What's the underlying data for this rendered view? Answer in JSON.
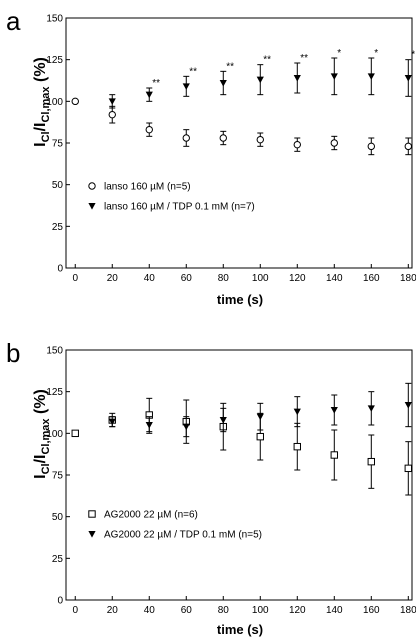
{
  "chart_data": [
    {
      "type": "scatter",
      "panel_label": "a",
      "xlabel": "time (s)",
      "ylabel": "ICl/ICl,max (%)",
      "xlim": [
        -5,
        182
      ],
      "ylim": [
        0,
        150
      ],
      "xticks": [
        0,
        20,
        40,
        60,
        80,
        100,
        120,
        140,
        160,
        180
      ],
      "yticks": [
        0,
        25,
        50,
        75,
        100,
        125,
        150
      ],
      "legend_position": "lower-left",
      "series": [
        {
          "name": "lanso 160 µM (n=5)",
          "marker": "open-circle",
          "x": [
            0,
            20,
            40,
            60,
            80,
            100,
            120,
            140,
            160,
            180
          ],
          "y": [
            100,
            92,
            83,
            78,
            78,
            77,
            74,
            75,
            73,
            73
          ],
          "err": [
            0,
            5,
            4,
            5,
            4,
            4,
            4,
            4,
            5,
            5
          ]
        },
        {
          "name": "lanso 160 µM / TDP 0.1 mM (n=7)",
          "marker": "filled-down-triangle",
          "x": [
            20,
            40,
            60,
            80,
            100,
            120,
            140,
            160,
            180
          ],
          "y": [
            100,
            104,
            109,
            111,
            113,
            114,
            115,
            115,
            114
          ],
          "err": [
            4,
            4,
            6,
            7,
            9,
            9,
            11,
            11,
            11
          ]
        }
      ],
      "annotations": [
        {
          "x": 40,
          "text": "**"
        },
        {
          "x": 60,
          "text": "**"
        },
        {
          "x": 80,
          "text": "**"
        },
        {
          "x": 100,
          "text": "**"
        },
        {
          "x": 120,
          "text": "**"
        },
        {
          "x": 140,
          "text": "*"
        },
        {
          "x": 160,
          "text": "*"
        },
        {
          "x": 180,
          "text": "*"
        }
      ]
    },
    {
      "type": "scatter",
      "panel_label": "b",
      "xlabel": "time (s)",
      "ylabel": "ICl/ICl,max (%)",
      "xlim": [
        -5,
        182
      ],
      "ylim": [
        0,
        150
      ],
      "xticks": [
        0,
        20,
        40,
        60,
        80,
        100,
        120,
        140,
        160,
        180
      ],
      "yticks": [
        0,
        25,
        50,
        75,
        100,
        125,
        150
      ],
      "legend_position": "lower-left",
      "series": [
        {
          "name": "AG2000 22 µM (n=6)",
          "marker": "open-square",
          "x": [
            0,
            20,
            40,
            60,
            80,
            100,
            120,
            140,
            160,
            180
          ],
          "y": [
            100,
            108,
            111,
            107,
            104,
            98,
            92,
            87,
            83,
            79
          ],
          "err": [
            0,
            4,
            10,
            13,
            14,
            14,
            14,
            15,
            16,
            16
          ]
        },
        {
          "name": "AG2000 22 µM / TDP 0.1 mM (n=5)",
          "marker": "filled-down-triangle",
          "x": [
            20,
            40,
            60,
            80,
            100,
            120,
            140,
            160,
            180
          ],
          "y": [
            107,
            105,
            104,
            108,
            110,
            113,
            114,
            115,
            117
          ],
          "err": [
            3,
            5,
            6,
            7,
            8,
            9,
            9,
            10,
            13
          ]
        }
      ],
      "annotations": []
    }
  ]
}
